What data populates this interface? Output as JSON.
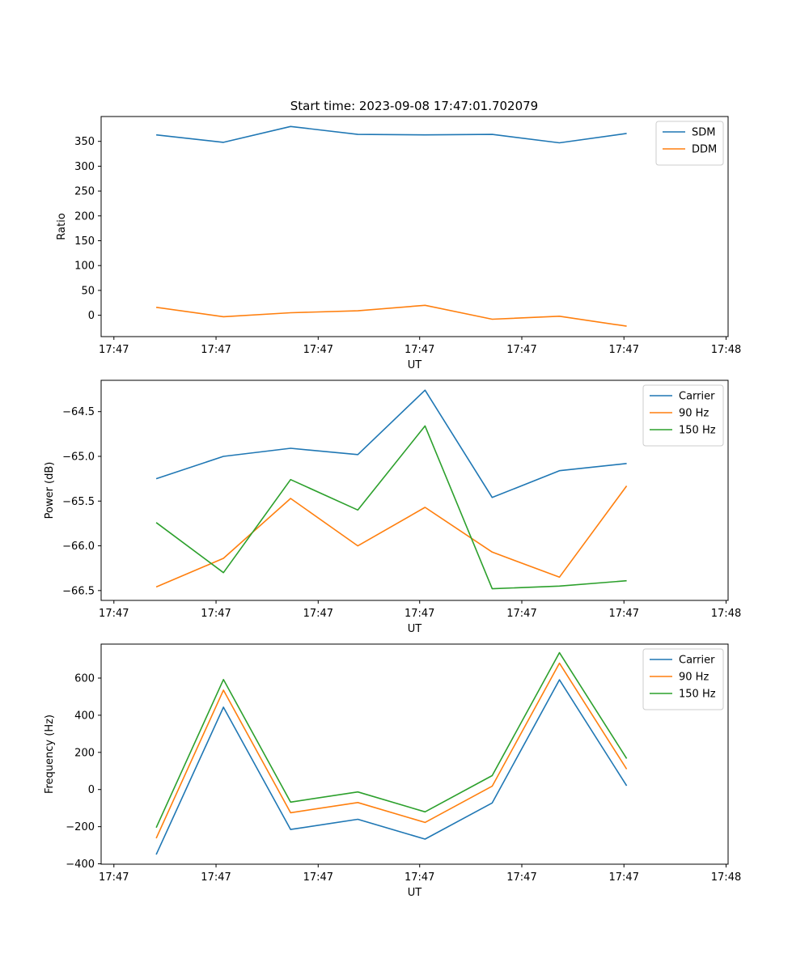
{
  "figure_title": "Start time: 2023-09-08 17:47:01.702079",
  "chart_data": [
    {
      "type": "line",
      "title": "Start time: 2023-09-08 17:47:01.702079",
      "xlabel": "UT",
      "ylabel": "Ratio",
      "x": [
        1,
        2,
        3,
        4,
        5,
        6,
        7,
        8
      ],
      "xlim": [
        0.18,
        9.51
      ],
      "xticks": [
        0.37,
        1.89,
        3.41,
        4.92,
        6.44,
        7.96,
        9.48
      ],
      "xticklabels": [
        "17:47",
        "17:47",
        "17:47",
        "17:47",
        "17:47",
        "17:47",
        "17:48"
      ],
      "ylim": [
        -43,
        400
      ],
      "yticks": [
        0,
        50,
        100,
        150,
        200,
        250,
        300,
        350
      ],
      "yticklabels": [
        "0",
        "50",
        "100",
        "150",
        "200",
        "250",
        "300",
        "350"
      ],
      "legend": "top-right",
      "series": [
        {
          "name": "SDM",
          "color": "#1f77b4",
          "values": [
            363,
            348,
            380,
            364,
            363,
            364,
            347,
            366
          ]
        },
        {
          "name": "DDM",
          "color": "#ff7f0e",
          "values": [
            16,
            -3,
            5,
            9,
            20,
            -8,
            -2,
            -22
          ]
        }
      ]
    },
    {
      "type": "line",
      "title": "",
      "xlabel": "UT",
      "ylabel": "Power (dB)",
      "x": [
        1,
        2,
        3,
        4,
        5,
        6,
        7,
        8
      ],
      "xlim": [
        0.18,
        9.51
      ],
      "xticks": [
        0.37,
        1.89,
        3.41,
        4.92,
        6.44,
        7.96,
        9.48
      ],
      "xticklabels": [
        "17:47",
        "17:47",
        "17:47",
        "17:47",
        "17:47",
        "17:47",
        "17:48"
      ],
      "ylim": [
        -66.61,
        -64.15
      ],
      "yticks": [
        -66.5,
        -66.0,
        -65.5,
        -65.0,
        -64.5
      ],
      "yticklabels": [
        "−66.5",
        "−66.0",
        "−65.5",
        "−65.0",
        "−64.5"
      ],
      "legend": "top-right",
      "series": [
        {
          "name": "Carrier",
          "color": "#1f77b4",
          "values": [
            -65.25,
            -65.0,
            -64.91,
            -64.98,
            -64.26,
            -65.46,
            -65.16,
            -65.08
          ]
        },
        {
          "name": "90 Hz",
          "color": "#ff7f0e",
          "values": [
            -66.46,
            -66.14,
            -65.47,
            -66.0,
            -65.57,
            -66.07,
            -66.35,
            -65.33
          ]
        },
        {
          "name": "150 Hz",
          "color": "#2ca02c",
          "values": [
            -65.74,
            -66.3,
            -65.26,
            -65.6,
            -64.66,
            -66.48,
            -66.45,
            -66.39
          ]
        }
      ]
    },
    {
      "type": "line",
      "title": "",
      "xlabel": "UT",
      "ylabel": "Frequency (Hz)",
      "x": [
        1,
        2,
        3,
        4,
        5,
        6,
        7,
        8
      ],
      "xlim": [
        0.18,
        9.51
      ],
      "xticks": [
        0.37,
        1.89,
        3.41,
        4.92,
        6.44,
        7.96,
        9.48
      ],
      "xticklabels": [
        "17:47",
        "17:47",
        "17:47",
        "17:47",
        "17:47",
        "17:47",
        "17:48"
      ],
      "ylim": [
        -402,
        783
      ],
      "yticks": [
        -400,
        -200,
        0,
        200,
        400,
        600
      ],
      "yticklabels": [
        "−400",
        "−200",
        "0",
        "200",
        "400",
        "600"
      ],
      "legend": "top-right",
      "series": [
        {
          "name": "Carrier",
          "color": "#1f77b4",
          "values": [
            -350,
            443,
            -215,
            -160,
            -267,
            -72,
            591,
            20
          ]
        },
        {
          "name": "90 Hz",
          "color": "#ff7f0e",
          "values": [
            -262,
            535,
            -125,
            -70,
            -177,
            18,
            680,
            110
          ]
        },
        {
          "name": "150 Hz",
          "color": "#2ca02c",
          "values": [
            -205,
            592,
            -68,
            -13,
            -120,
            75,
            737,
            167
          ]
        }
      ]
    }
  ]
}
